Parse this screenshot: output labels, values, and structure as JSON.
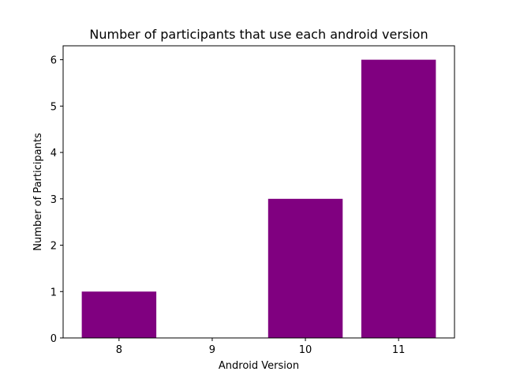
{
  "chart_data": {
    "type": "bar",
    "title": "Number of participants that use each android version",
    "xlabel": "Android Version",
    "ylabel": "Number of Participants",
    "categories": [
      "8",
      "9",
      "10",
      "11"
    ],
    "values": [
      1,
      0,
      3,
      6
    ],
    "ylim": [
      0,
      6.3
    ],
    "yticks": [
      "0",
      "1",
      "2",
      "3",
      "4",
      "5",
      "6"
    ],
    "bar_color": "#800080",
    "grid": false,
    "legend": "none"
  }
}
